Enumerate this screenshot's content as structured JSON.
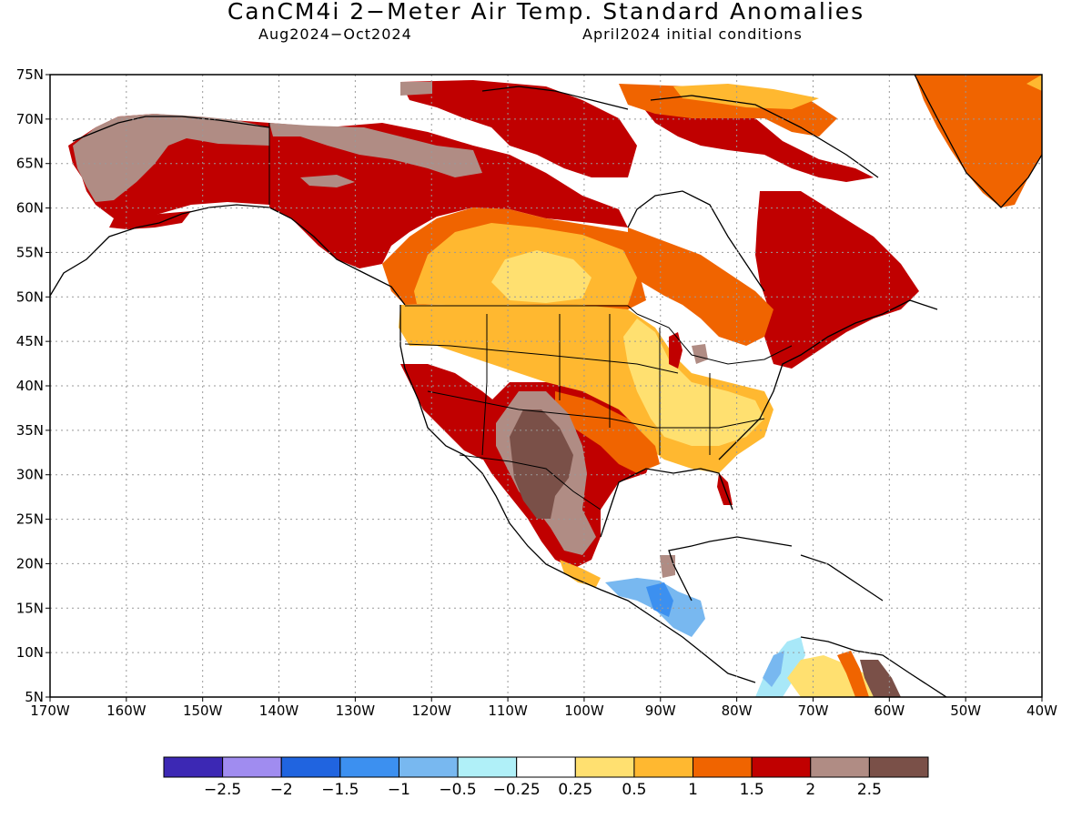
{
  "title": "CanCM4i 2−Meter Air Temp. Standard Anomalies",
  "subtitle_left": "Aug2024−Oct2024",
  "subtitle_right": "April2024 initial conditions",
  "map": {
    "lon_range": [
      -170,
      -40
    ],
    "lat_range": [
      5,
      75
    ],
    "grid": "dotted",
    "lat_ticks": [
      "75N",
      "70N",
      "65N",
      "60N",
      "55N",
      "50N",
      "45N",
      "40N",
      "35N",
      "30N",
      "25N",
      "20N",
      "15N",
      "10N",
      "5N"
    ],
    "lon_ticks": [
      "170W",
      "160W",
      "150W",
      "140W",
      "130W",
      "120W",
      "110W",
      "100W",
      "90W",
      "80W",
      "70W",
      "60W",
      "50W",
      "40W"
    ],
    "ocean_color": "#ffffff",
    "regions": [
      {
        "name": "alaska-north",
        "level": "1.5-2",
        "color": "#c00000"
      },
      {
        "name": "alaska-west",
        "level": "2-2.5",
        "color": "#b08c84"
      },
      {
        "name": "western-canada",
        "level": "1.5-2",
        "color": "#c00000"
      },
      {
        "name": "northern-arctic-canada",
        "level": "1.5-2",
        "color": "#c00000"
      },
      {
        "name": "quebec-labrador",
        "level": "1.5-2",
        "color": "#c00000"
      },
      {
        "name": "greenland",
        "level": "1-1.5",
        "color": "#f06400"
      },
      {
        "name": "prairies",
        "level": "0.25-0.5",
        "color": "#ffe070"
      },
      {
        "name": "central-us",
        "level": "0.5-1",
        "color": "#ffb830"
      },
      {
        "name": "southwest-us-mexico",
        "level": ">2.5",
        "color": "#7a5048"
      },
      {
        "name": "central-america",
        "level": "-1 to -0.5",
        "color": "#78b8f0"
      },
      {
        "name": "venezuela-coast",
        "level": "-1 to -0.25",
        "color": "#a8e8f8"
      }
    ]
  },
  "colorbar": {
    "colors": [
      "#3c28b4",
      "#a08cf0",
      "#2064e0",
      "#3c90f0",
      "#78b8f0",
      "#b0f0f8",
      "#ffffff",
      "#ffe070",
      "#ffb830",
      "#f06400",
      "#c00000",
      "#b08c84",
      "#7a5048"
    ],
    "labels": [
      "−2.5",
      "−2",
      "−1.5",
      "−1",
      "−0.5",
      "−0.25",
      "0.25",
      "0.5",
      "1",
      "1.5",
      "2",
      "2.5"
    ]
  }
}
